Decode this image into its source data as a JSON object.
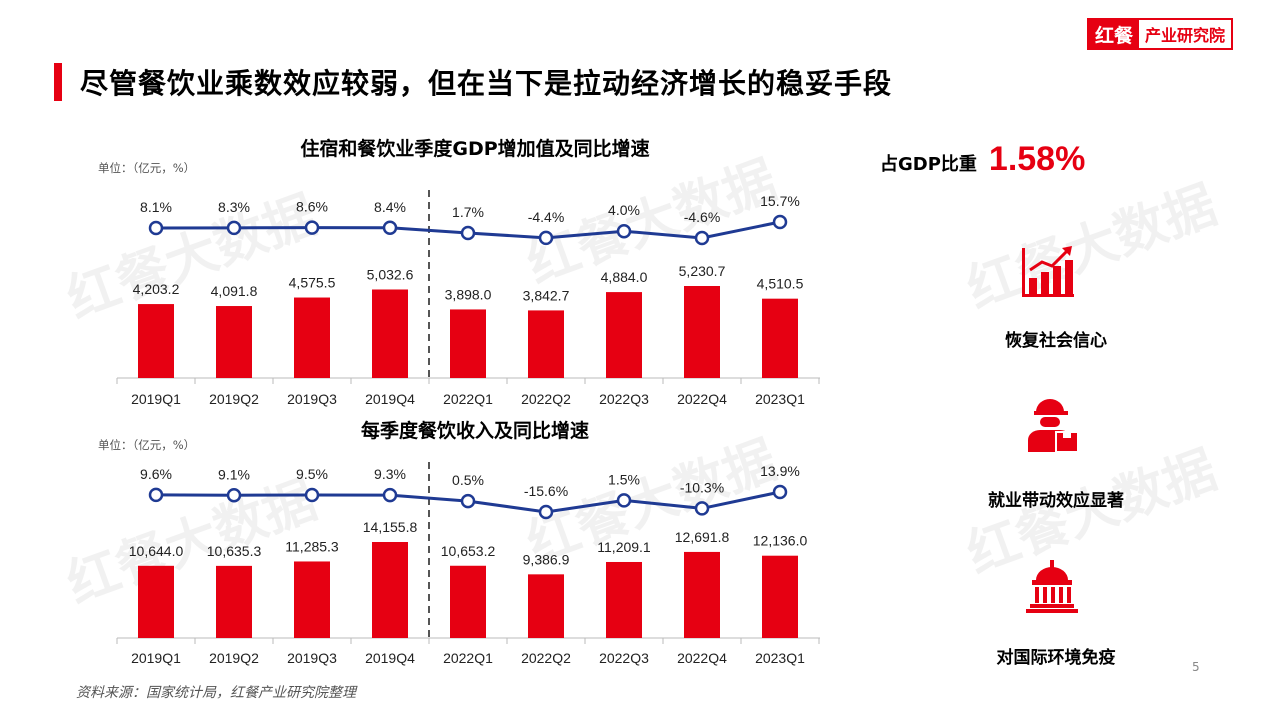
{
  "header": {
    "logo_brand": "红餐",
    "logo_text": "产业研究院",
    "title": "尽管餐饮业乘数效应较弱，但在当下是拉动经济增长的稳妥手段"
  },
  "watermark": "红餐大数据",
  "chart_data": [
    {
      "type": "bar",
      "title": "住宿和餐饮业季度GDP增加值及同比增速",
      "unit": "单位：（亿元，%）",
      "categories": [
        "2019Q1",
        "2019Q2",
        "2019Q3",
        "2019Q4",
        "2022Q1",
        "2022Q2",
        "2022Q3",
        "2022Q4",
        "2023Q1"
      ],
      "values": [
        4203.2,
        4091.8,
        4575.5,
        5032.6,
        3898.0,
        3842.7,
        4884.0,
        5230.7,
        4510.5
      ],
      "value_labels": [
        "4,203.2",
        "4,091.8",
        "4,575.5",
        "5,032.6",
        "3,898.0",
        "3,842.7",
        "4,884.0",
        "5,230.7",
        "4,510.5"
      ],
      "growth": [
        8.1,
        8.3,
        8.6,
        8.4,
        1.7,
        -4.4,
        4.0,
        -4.6,
        15.7
      ],
      "growth_labels": [
        "8.1%",
        "8.3%",
        "8.6%",
        "8.4%",
        "1.7%",
        "-4.4%",
        "4.0%",
        "-4.6%",
        "15.7%"
      ],
      "bar_color": "#e60012",
      "line_color": "#1f3a93"
    },
    {
      "type": "bar",
      "title": "每季度餐饮收入及同比增速",
      "unit": "单位：（亿元，%）",
      "categories": [
        "2019Q1",
        "2019Q2",
        "2019Q3",
        "2019Q4",
        "2022Q1",
        "2022Q2",
        "2022Q3",
        "2022Q4",
        "2023Q1"
      ],
      "values": [
        10644.0,
        10635.3,
        11285.3,
        14155.8,
        10653.2,
        9386.9,
        11209.1,
        12691.8,
        12136.0
      ],
      "value_labels": [
        "10,644.0",
        "10,635.3",
        "11,285.3",
        "14,155.8",
        "10,653.2",
        "9,386.9",
        "11,209.1",
        "12,691.8",
        "12,136.0"
      ],
      "growth": [
        9.6,
        9.1,
        9.5,
        9.3,
        0.5,
        -15.6,
        1.5,
        -10.3,
        13.9
      ],
      "growth_labels": [
        "9.6%",
        "9.1%",
        "9.5%",
        "9.3%",
        "0.5%",
        "-15.6%",
        "1.5%",
        "-10.3%",
        "13.9%"
      ],
      "bar_color": "#e60012",
      "line_color": "#1f3a93"
    }
  ],
  "side": {
    "share_label": "占GDP比重",
    "share_value": "1.58%",
    "items": [
      {
        "icon": "bar-chart-growth-icon",
        "label": "恢复社会信心"
      },
      {
        "icon": "delivery-worker-icon",
        "label": "就业带动效应显著"
      },
      {
        "icon": "government-building-icon",
        "label": "对国际环境免疫"
      }
    ]
  },
  "footer": {
    "source": "资料来源：国家统计局，红餐产业研究院整理",
    "page": "5"
  },
  "colors": {
    "accent": "#e60012",
    "line": "#1f3a93"
  }
}
